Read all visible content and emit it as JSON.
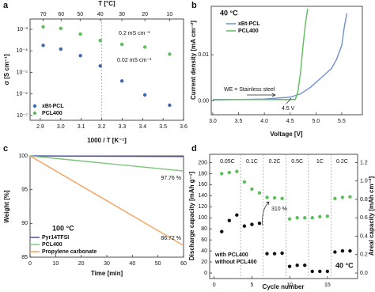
{
  "chart_data": [
    {
      "type": "scatter",
      "panel": "a",
      "xlabel": "1000 / T [K⁻¹]",
      "ylabel": "σ [S cm⁻¹]",
      "x2label": "T [°C]",
      "x": [
        2.914,
        3.0,
        3.096,
        3.193,
        3.299,
        3.411,
        3.532
      ],
      "series": [
        {
          "name": "xBt-PCL",
          "color": "#3f66b0",
          "values": [
            0.00018,
            0.00012,
            6e-05,
            2e-05,
            4e-06,
            9e-07,
            3e-07
          ]
        },
        {
          "name": "PCL400",
          "color": "#5cbf5c",
          "values": [
            0.0013,
            0.0011,
            0.0006,
            0.0003,
            0.0002,
            0.00015,
            7e-05
          ]
        }
      ],
      "xlim": [
        2.85,
        3.6
      ],
      "xticks": [
        2.9,
        {
          "value": 3,
          "label": "3.0"
        },
        3.1,
        3.2,
        3.3,
        3.4,
        3.5,
        3.6
      ],
      "x2ticks": [
        70,
        60,
        50,
        40,
        30,
        20,
        10
      ],
      "yscale": "log",
      "ylim": [
        6e-08,
        0.003
      ],
      "yticks": [
        {
          "value": 0.001,
          "label": "10⁻³"
        },
        {
          "value": 0.0001,
          "label": "10⁻⁴"
        },
        {
          "value": 1e-05,
          "label": "10⁻⁵"
        },
        {
          "value": 1e-06,
          "label": "10⁻⁶"
        },
        {
          "value": 1e-07,
          "label": "10⁻⁷"
        }
      ],
      "vlines": [
        3.2
      ],
      "annotations": [
        "0.2 mS cm⁻¹",
        "0.02 mS cm⁻¹"
      ],
      "legend": "lower left"
    },
    {
      "type": "line",
      "panel": "b",
      "xlabel": "Voltage [V]",
      "ylabel": "Current density [mA cm⁻²]",
      "series": [
        {
          "name": "xBt-PCL",
          "color": "#6f8fd0",
          "x": [
            3.0,
            4.0,
            4.5,
            4.7,
            4.9,
            5.1,
            5.3,
            5.4,
            5.5,
            5.55,
            5.6
          ],
          "values": [
            0.0002,
            0.0004,
            0.0008,
            0.0015,
            0.003,
            0.005,
            0.007,
            0.009,
            0.012,
            0.016,
            0.019
          ]
        },
        {
          "name": "PCL400",
          "color": "#5cbf5c",
          "x": [
            3.0,
            4.6,
            4.65,
            4.7,
            4.75,
            4.8,
            4.84
          ],
          "values": [
            0.0003,
            0.0003,
            0.002,
            0.006,
            0.012,
            0.017,
            0.02
          ]
        }
      ],
      "xlim": [
        2.97,
        5.9
      ],
      "xticks": [
        {
          "value": 3,
          "label": "3.0"
        },
        3.5,
        {
          "value": 4,
          "label": "4.0"
        },
        4.5,
        {
          "value": 5,
          "label": "5.0"
        },
        5.5
      ],
      "ylim": [
        -0.003,
        0.0205
      ],
      "yticks": [
        {
          "value": 0,
          "label": "0.00"
        },
        {
          "value": 0.01,
          "label": "0.01"
        }
      ],
      "annotations": [
        "40 °C",
        "WE = Stainless steel",
        "4.5 V"
      ],
      "legend": "upper left"
    },
    {
      "type": "line",
      "panel": "c",
      "xlabel": "Time [min]",
      "ylabel": "Weight [%]",
      "x": [
        0,
        60
      ],
      "series": [
        {
          "name": "Pyr14TFSI",
          "color": "#4b4fb0",
          "values": [
            100,
            99.9
          ]
        },
        {
          "name": "PCL400",
          "color": "#7cc47c",
          "values": [
            100,
            97.76
          ],
          "value_labels": [
            null,
            "97.76 %"
          ]
        },
        {
          "name": "Propylene carbonate",
          "color": "#f5a05a",
          "values": [
            100,
            86.72
          ],
          "value_labels": [
            null,
            "86.72 %"
          ]
        }
      ],
      "xlim": [
        0,
        60
      ],
      "xticks": [
        0,
        10,
        20,
        30,
        40,
        50,
        60
      ],
      "ylim": [
        85,
        100
      ],
      "yticks": [
        85,
        90,
        95,
        100
      ],
      "annotations": [
        "100 °C"
      ],
      "legend": "lower left"
    },
    {
      "type": "scatter",
      "panel": "d",
      "xlabel": "Cycle number",
      "ylabel": "Discharge capacity [mAh g⁻¹]",
      "y2label": "Areal capacity [mAh cm⁻²]",
      "x": [
        1,
        2,
        3,
        4,
        5,
        6,
        7,
        8,
        9,
        10,
        11,
        12,
        13,
        14,
        15,
        16,
        17,
        18
      ],
      "series": [
        {
          "name": "with PCL400",
          "color": "#5cbf5c",
          "values": [
            180,
            182,
            184,
            165,
            152,
            145,
            137,
            136,
            135,
            98,
            100,
            100,
            100,
            102,
            103,
            135,
            137,
            138
          ]
        },
        {
          "name": "without PCL400",
          "color": "#111111",
          "values": [
            75,
            95,
            105,
            85,
            88,
            90,
            35,
            35,
            36,
            12,
            14,
            14,
            3,
            3,
            3,
            38,
            40,
            40
          ]
        }
      ],
      "xlim": [
        -0.6,
        19
      ],
      "xticks": [
        0,
        5,
        10,
        15
      ],
      "ylim": [
        -10,
        215
      ],
      "yticks": [
        0,
        20,
        40,
        60,
        80,
        100,
        120,
        140,
        160,
        180,
        200
      ],
      "y2lim": [
        -0.06,
        1.29
      ],
      "y2ticks": [
        {
          "value": 0,
          "label": "0.0"
        },
        0.2,
        0.4,
        0.6,
        0.8,
        {
          "value": 1,
          "label": "1.0"
        },
        1.2
      ],
      "vlines": [
        3.5,
        6.5,
        9.5,
        12.5,
        15.5
      ],
      "rate_labels": [
        "0.05C",
        "0.1C",
        "0.2C",
        "0.5C",
        "1C",
        "0.2C"
      ],
      "annotations": [
        "310 %",
        "40 °C"
      ],
      "legend": "lower left"
    }
  ]
}
